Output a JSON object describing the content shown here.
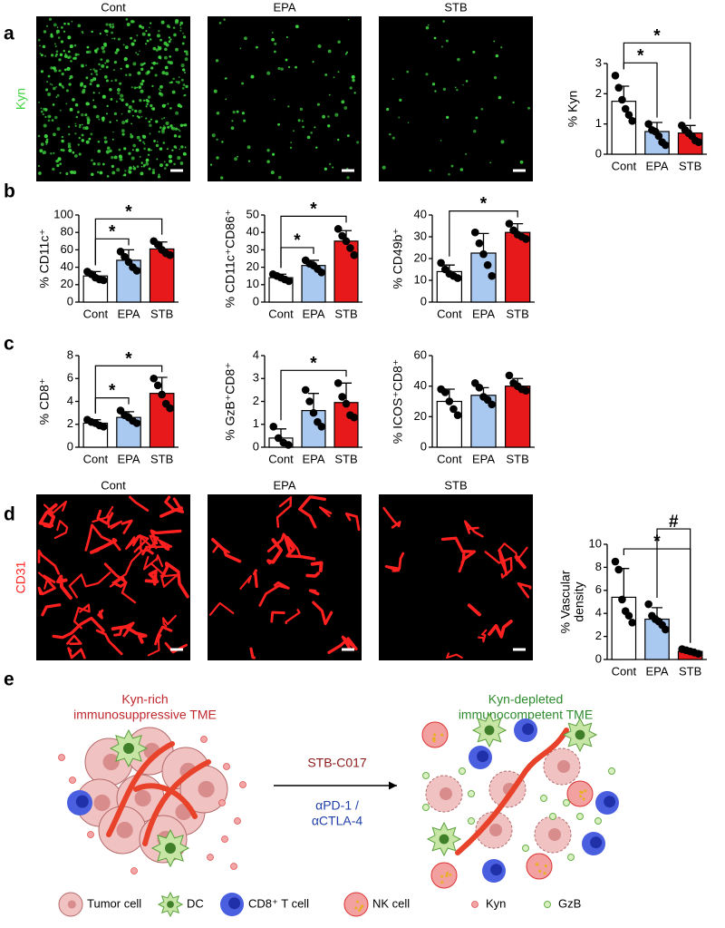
{
  "panel_labels": [
    "a",
    "b",
    "c",
    "d",
    "e"
  ],
  "images": {
    "a": {
      "titles": [
        "Cont",
        "EPA",
        "STB"
      ],
      "stain": "Kyn"
    },
    "d": {
      "titles": [
        "Cont",
        "EPA",
        "STB"
      ],
      "stain": "CD31"
    }
  },
  "chart_data": [
    {
      "type": "bar",
      "ylabel": [
        "% Kyn"
      ],
      "categories": [
        "Cont",
        "EPA",
        "STB"
      ],
      "colors": [
        "#ffffff",
        "#a9c9f0",
        "#e8191a"
      ],
      "values": [
        1.75,
        0.75,
        0.7
      ],
      "errors": [
        0.5,
        0.3,
        0.25
      ],
      "points": [
        [
          2.6,
          2.2,
          1.8,
          1.5,
          1.3,
          1.1
        ],
        [
          1.0,
          0.8,
          0.75,
          0.6,
          0.4,
          0.3
        ],
        [
          0.95,
          0.8,
          0.7,
          0.6,
          0.45,
          0.4
        ]
      ],
      "ylim": [
        0,
        3
      ],
      "yticks": [
        0,
        1,
        2,
        3
      ],
      "annotations": [
        {
          "text": "*",
          "between": [
            0,
            1
          ]
        },
        {
          "text": "*",
          "between": [
            0,
            2
          ]
        }
      ]
    },
    {
      "type": "bar",
      "ylabel": [
        "% CD11c⁺"
      ],
      "categories": [
        "Cont",
        "EPA",
        "STB"
      ],
      "colors": [
        "#ffffff",
        "#a9c9f0",
        "#e8191a"
      ],
      "values": [
        30,
        48,
        61
      ],
      "errors": [
        5,
        12,
        8
      ],
      "points": [
        [
          35,
          32,
          28,
          26,
          25
        ],
        [
          58,
          52,
          46,
          40,
          36
        ],
        [
          70,
          66,
          60,
          56,
          54
        ]
      ],
      "ylim": [
        0,
        100
      ],
      "yticks": [
        0,
        20,
        40,
        60,
        80,
        100
      ],
      "annotations": [
        {
          "text": "*",
          "between": [
            0,
            1
          ]
        },
        {
          "text": "*",
          "between": [
            0,
            2
          ]
        }
      ]
    },
    {
      "type": "bar",
      "ylabel": [
        "% CD11c⁺CD86⁺"
      ],
      "categories": [
        "Cont",
        "EPA",
        "STB"
      ],
      "colors": [
        "#ffffff",
        "#a9c9f0",
        "#e8191a"
      ],
      "values": [
        14,
        21,
        35
      ],
      "errors": [
        2,
        3,
        6
      ],
      "points": [
        [
          16,
          15,
          14,
          13,
          12
        ],
        [
          24,
          22,
          21,
          19,
          17
        ],
        [
          42,
          38,
          35,
          31,
          27
        ]
      ],
      "ylim": [
        0,
        50
      ],
      "yticks": [
        0,
        10,
        20,
        30,
        40,
        50
      ],
      "annotations": [
        {
          "text": "*",
          "between": [
            0,
            1
          ]
        },
        {
          "text": "*",
          "between": [
            0,
            2
          ]
        }
      ]
    },
    {
      "type": "bar",
      "ylabel": [
        "% CD49b⁺"
      ],
      "categories": [
        "Cont",
        "EPA",
        "STB"
      ],
      "colors": [
        "#ffffff",
        "#a9c9f0",
        "#e8191a"
      ],
      "values": [
        14,
        22.5,
        32
      ],
      "errors": [
        3,
        9,
        4
      ],
      "points": [
        [
          18,
          15,
          13,
          12,
          11
        ],
        [
          32,
          27,
          22,
          17,
          12
        ],
        [
          36,
          33,
          31,
          30,
          29
        ]
      ],
      "ylim": [
        0,
        40
      ],
      "yticks": [
        0,
        10,
        20,
        30,
        40
      ],
      "annotations": [
        {
          "text": "*",
          "between": [
            0,
            2
          ]
        }
      ]
    },
    {
      "type": "bar",
      "ylabel": [
        "% CD8⁺"
      ],
      "categories": [
        "Cont",
        "EPA",
        "STB"
      ],
      "colors": [
        "#ffffff",
        "#a9c9f0",
        "#e8191a"
      ],
      "values": [
        2.1,
        2.6,
        4.7
      ],
      "errors": [
        0.3,
        0.5,
        1.4
      ],
      "points": [
        [
          2.4,
          2.2,
          2.1,
          1.9,
          1.8
        ],
        [
          3.2,
          2.8,
          2.6,
          2.3,
          2.1
        ],
        [
          6.0,
          5.4,
          4.6,
          3.8,
          3.4
        ]
      ],
      "ylim": [
        0,
        8
      ],
      "yticks": [
        0,
        2,
        4,
        6,
        8
      ],
      "annotations": [
        {
          "text": "*",
          "between": [
            0,
            1
          ]
        },
        {
          "text": "*",
          "between": [
            0,
            2
          ]
        }
      ]
    },
    {
      "type": "bar",
      "ylabel": [
        "% GzB⁺CD8⁺"
      ],
      "categories": [
        "Cont",
        "EPA",
        "STB"
      ],
      "colors": [
        "#ffffff",
        "#a9c9f0",
        "#e8191a"
      ],
      "values": [
        0.4,
        1.6,
        1.95
      ],
      "errors": [
        0.4,
        0.75,
        0.85
      ],
      "points": [
        [
          0.9,
          0.4,
          0.2,
          0.1
        ],
        [
          2.5,
          2.0,
          1.5,
          1.1,
          0.9
        ],
        [
          2.8,
          2.2,
          1.9,
          1.4,
          1.3
        ]
      ],
      "ylim": [
        0,
        4
      ],
      "yticks": [
        0,
        1,
        2,
        3,
        4
      ],
      "annotations": [
        {
          "text": "*",
          "between": [
            0,
            2
          ]
        }
      ]
    },
    {
      "type": "bar",
      "ylabel": [
        "% ICOS⁺CD8⁺"
      ],
      "categories": [
        "Cont",
        "EPA",
        "STB"
      ],
      "colors": [
        "#ffffff",
        "#a9c9f0",
        "#e8191a"
      ],
      "values": [
        30,
        34,
        40
      ],
      "errors": [
        8,
        5,
        5
      ],
      "points": [
        [
          38,
          36,
          30,
          25,
          21
        ],
        [
          42,
          39,
          33,
          31,
          28
        ],
        [
          47,
          42,
          40,
          38,
          37
        ]
      ],
      "ylim": [
        0,
        60
      ],
      "yticks": [
        0,
        20,
        40,
        60
      ],
      "annotations": []
    },
    {
      "type": "bar",
      "ylabel": [
        "% Vascular",
        "density"
      ],
      "categories": [
        "Cont",
        "EPA",
        "STB"
      ],
      "colors": [
        "#ffffff",
        "#a9c9f0",
        "#e8191a"
      ],
      "values": [
        5.4,
        3.5,
        0.7
      ],
      "errors": [
        2.5,
        1.0,
        0.2
      ],
      "points": [
        [
          8.5,
          7.8,
          5.2,
          4.2,
          3.8,
          3.2
        ],
        [
          4.8,
          3.8,
          3.5,
          3.3,
          3.0,
          2.6
        ],
        [
          0.9,
          0.8,
          0.7,
          0.6,
          0.5
        ]
      ],
      "ylim": [
        0,
        10
      ],
      "yticks": [
        0,
        2,
        4,
        6,
        8,
        10
      ],
      "annotations": [
        {
          "text": "*",
          "between": [
            0,
            2
          ]
        },
        {
          "text": "#",
          "between": [
            1,
            2
          ]
        }
      ]
    }
  ],
  "diagram": {
    "left_title": [
      "Kyn-rich",
      "immunosuppressive TME"
    ],
    "right_title": [
      "Kyn-depleted",
      "immunocompetent TME"
    ],
    "treatment": "STB-C017",
    "combination": [
      "αPD-1 /",
      "αCTLA-4"
    ],
    "legend": [
      "Tumor cell",
      "DC",
      "CD8⁺ T cell",
      "NK cell",
      "Kyn",
      "GzB"
    ]
  }
}
